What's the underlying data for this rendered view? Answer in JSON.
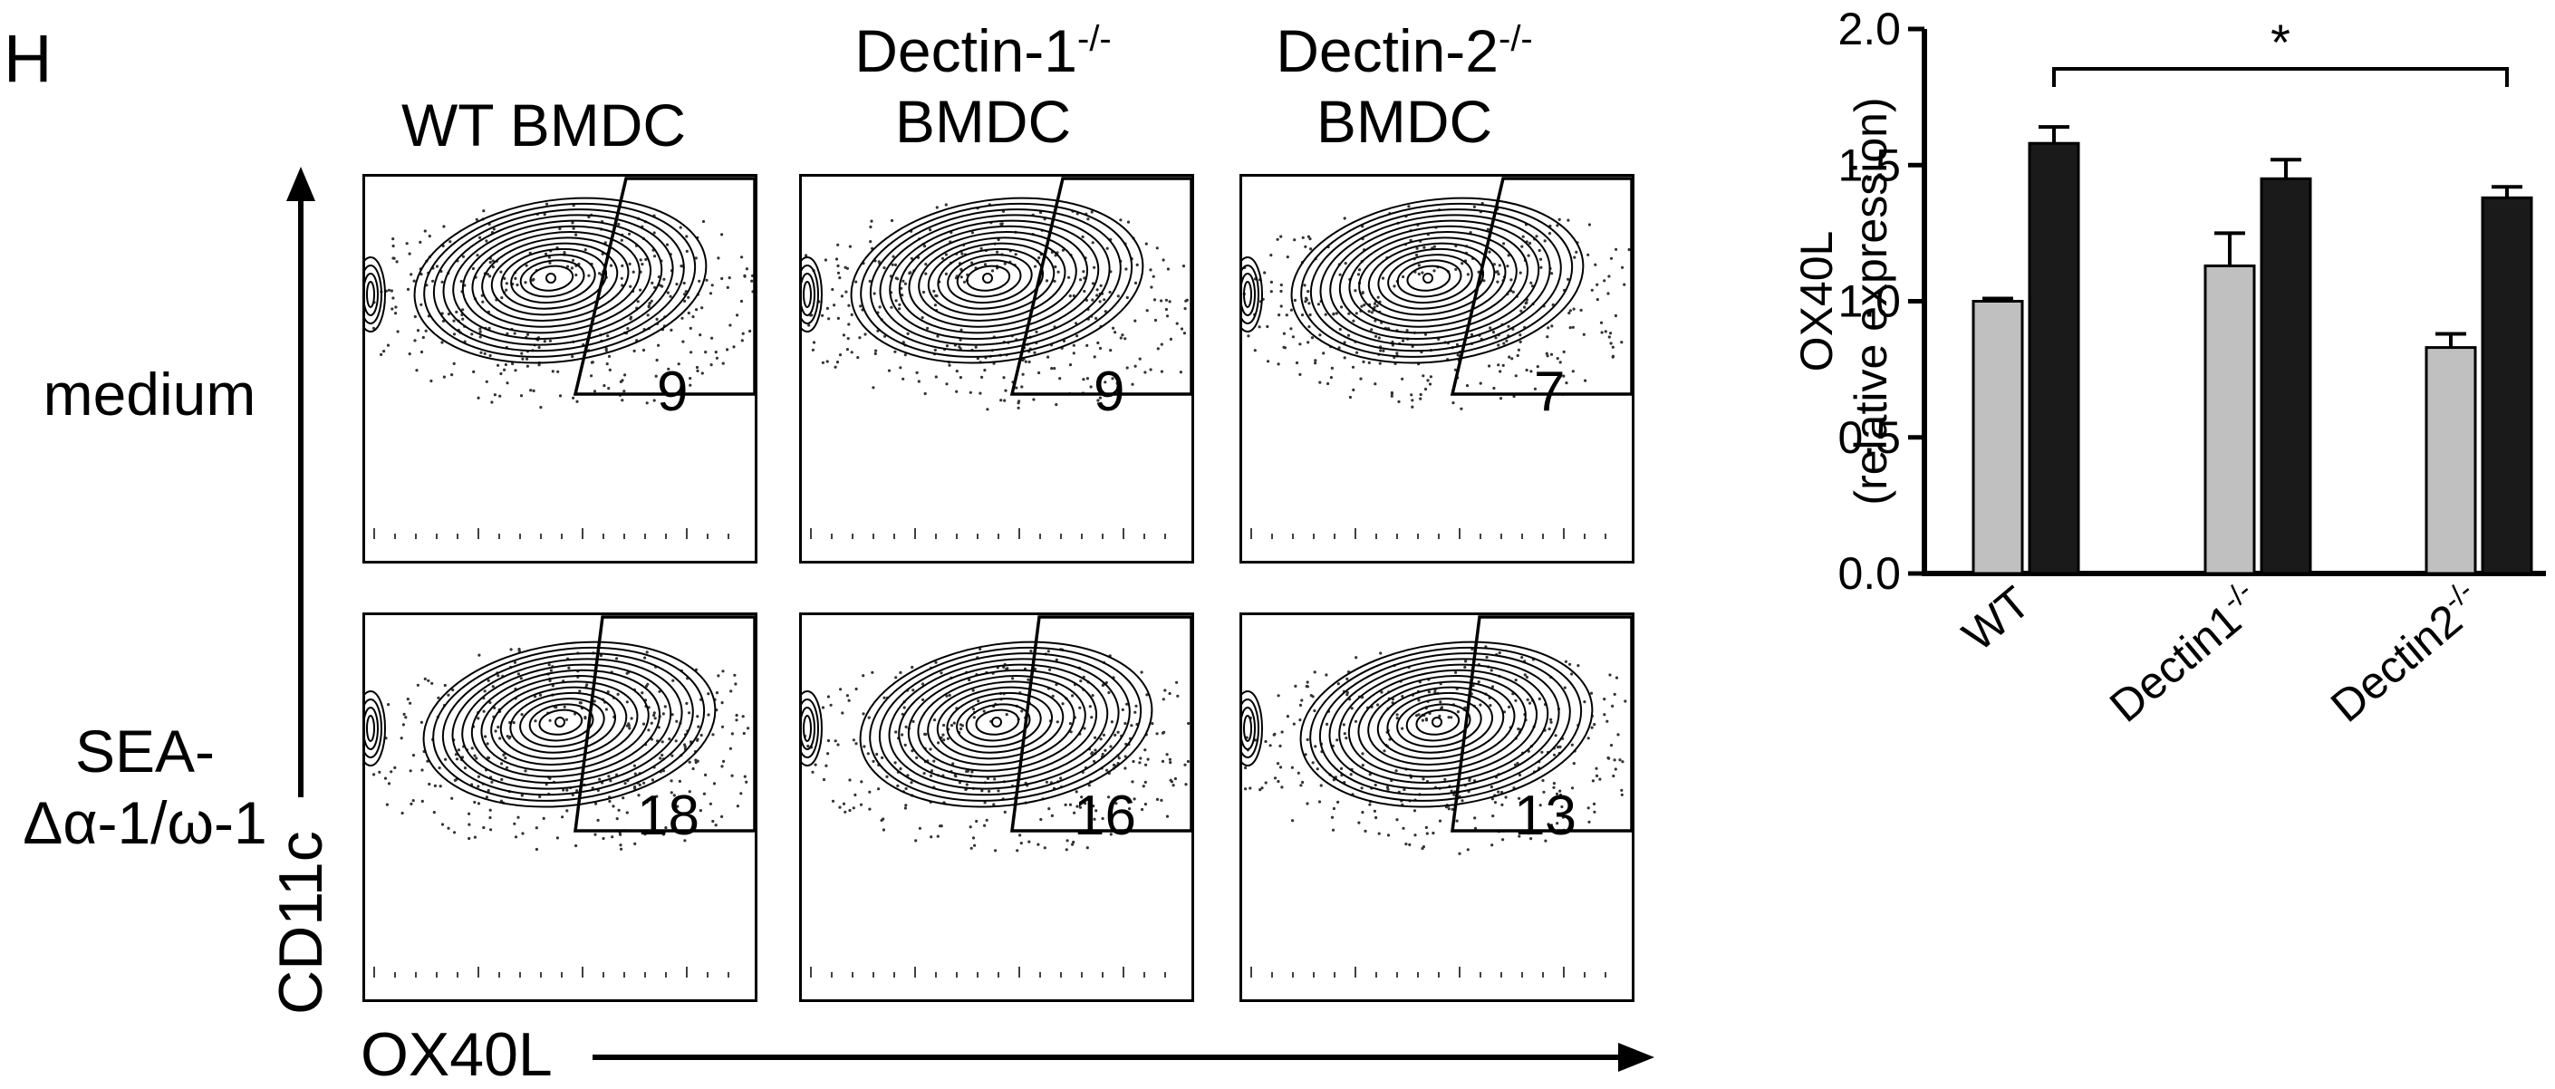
{
  "panel_letter": "H",
  "flow": {
    "columns": [
      {
        "line1": "WT BMDC",
        "line2": ""
      },
      {
        "line1": "Dectin-1",
        "sup": "-/-",
        "line2": "BMDC"
      },
      {
        "line1": "Dectin-2",
        "sup": "-/-",
        "line2": "BMDC"
      }
    ],
    "rows": [
      {
        "line1": "medium",
        "line2": ""
      },
      {
        "line1": "SEA-",
        "line2": "Δα-1/ω-1"
      }
    ],
    "gate_values": [
      [
        "9",
        "9",
        "7"
      ],
      [
        "18",
        "16",
        "13"
      ]
    ],
    "y_axis_label": "CD11c",
    "x_axis_label": "OX40L"
  },
  "chart_data": {
    "type": "bar",
    "categories": [
      "WT",
      "Dectin1",
      "Dectin2"
    ],
    "category_superscript": "-/-",
    "ylabel_line1": "OX40L",
    "ylabel_line2": "(relative expression)",
    "ylim": [
      0,
      2.0
    ],
    "yticks": [
      "0.0",
      "0.5",
      "1.0",
      "1.5",
      "2.0"
    ],
    "series": [
      {
        "values": [
          1.0,
          1.13,
          0.83
        ],
        "errors": [
          0.01,
          0.12,
          0.05
        ],
        "color": "#c0c0c0"
      },
      {
        "values": [
          1.58,
          1.45,
          1.38
        ],
        "errors": [
          0.06,
          0.07,
          0.04
        ],
        "color": "#1a1a1a"
      }
    ],
    "significance": {
      "label": "*",
      "from_category": 0,
      "to_category": 2,
      "series": 1
    }
  }
}
